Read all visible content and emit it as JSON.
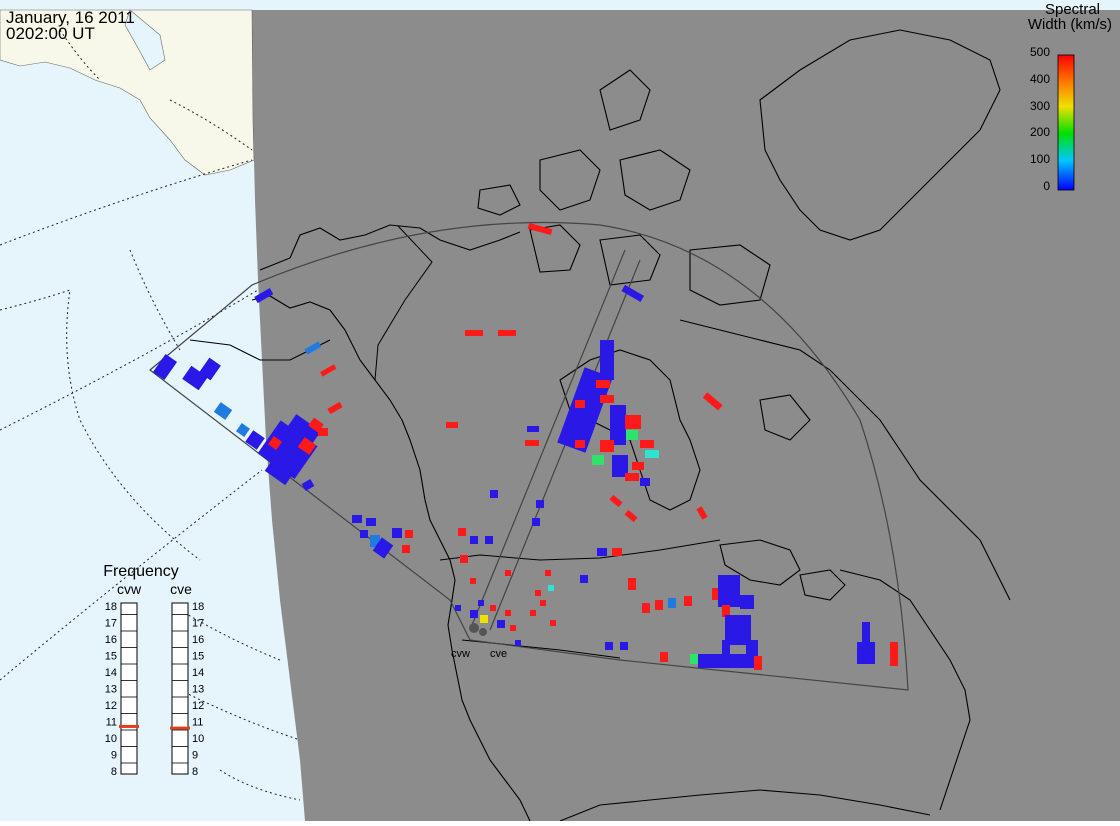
{
  "header": {
    "date": "January, 16 2011",
    "time": "0202:00 UT"
  },
  "colorbar": {
    "title_line1": "Spectral",
    "title_line2": "Width (km/s)",
    "ticks": [
      "500",
      "400",
      "300",
      "200",
      "100",
      "0"
    ]
  },
  "stations": [
    {
      "code": "cvw"
    },
    {
      "code": "cve"
    }
  ],
  "frequency": {
    "title": "Frequency",
    "scale": [
      "18",
      "17",
      "16",
      "15",
      "14",
      "13",
      "12",
      "11",
      "10",
      "9",
      "8"
    ],
    "cvw_mhz": 10.7,
    "cve_mhz": 10.6
  },
  "colors": {
    "ocean": "#e6f4fb",
    "land_dark": "#8c8c8c",
    "land_light": "#f8f8ea",
    "low_width": "#2a19e6",
    "mid_width": "#1f7be0",
    "high_width": "#ff1a1a",
    "marker": "#e0401a"
  }
}
